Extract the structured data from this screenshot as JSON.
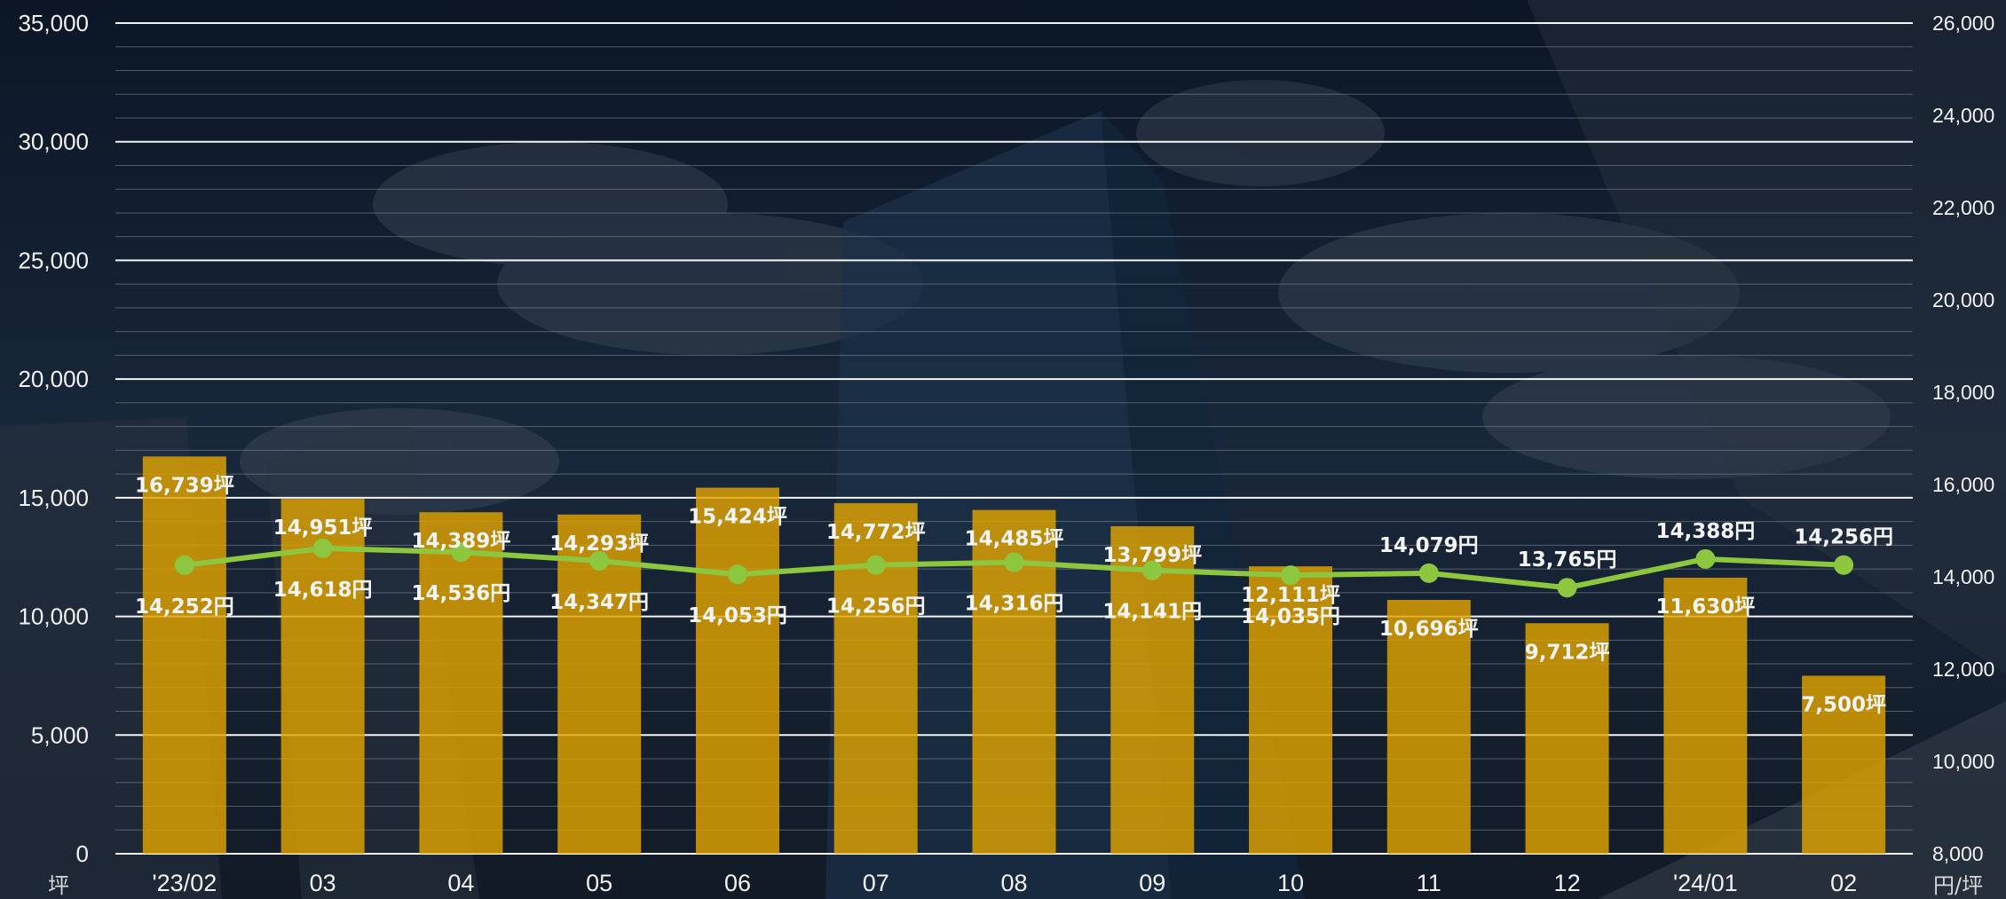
{
  "chart_data": {
    "type": "bar",
    "categories": [
      "'23/02",
      "03",
      "04",
      "05",
      "06",
      "07",
      "08",
      "09",
      "10",
      "11",
      "12",
      "'24/01",
      "02"
    ],
    "series": [
      {
        "type": "bar",
        "axis": "left",
        "values": [
          16739,
          14951,
          14389,
          14293,
          15424,
          14772,
          14485,
          13799,
          12111,
          10696,
          9712,
          11630,
          7500
        ],
        "labels": [
          "16,739坪",
          "14,951坪",
          "14,389坪",
          "14,293坪",
          "15,424坪",
          "14,772坪",
          "14,485坪",
          "13,799坪",
          "12,111坪",
          "10,696坪",
          "9,712坪",
          "11,630坪",
          "7,500坪"
        ]
      },
      {
        "type": "line",
        "axis": "right",
        "values": [
          14252,
          14618,
          14536,
          14347,
          14053,
          14256,
          14316,
          14141,
          14035,
          14079,
          13765,
          14388,
          14256
        ],
        "labels": [
          "14,252円",
          "14,618円",
          "14,536円",
          "14,347円",
          "14,053円",
          "14,256円",
          "14,316円",
          "14,141円",
          "14,035円",
          "14,079円",
          "13,765円",
          "14,388円",
          "14,256円"
        ]
      }
    ],
    "y_left": {
      "range": [
        0,
        35000
      ],
      "ticks": [
        "0",
        "5,000",
        "10,000",
        "15,000",
        "20,000",
        "25,000",
        "30,000",
        "35,000"
      ],
      "unit": "坪"
    },
    "y_right": {
      "range": [
        8000,
        26000
      ],
      "ticks": [
        "8,000",
        "10,000",
        "12,000",
        "14,000",
        "16,000",
        "18,000",
        "20,000",
        "22,000",
        "24,000",
        "26,000"
      ],
      "unit": "円/坪"
    },
    "grid": true,
    "legend": "none",
    "colors": {
      "bar": "#e0a400",
      "line": "#8dc63f",
      "text": "#f2f2f2",
      "grid_major": "#ffffff",
      "grid_minor": "#8a8f98"
    }
  }
}
